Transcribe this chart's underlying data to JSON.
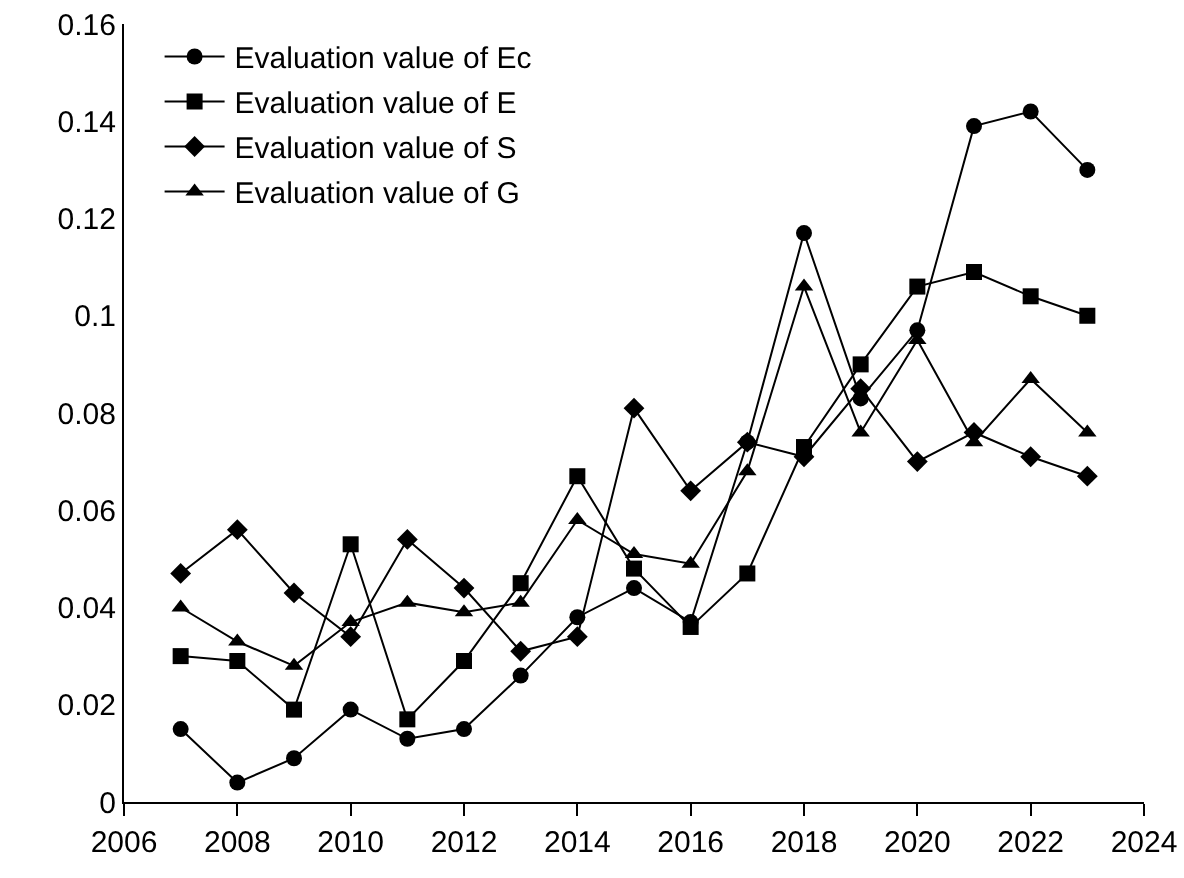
{
  "chart_data": {
    "type": "line",
    "x": [
      2007,
      2008,
      2009,
      2010,
      2011,
      2012,
      2013,
      2014,
      2015,
      2016,
      2017,
      2018,
      2019,
      2020,
      2021,
      2022,
      2023
    ],
    "series": [
      {
        "name": "Evaluation value of Ec",
        "color": "#000000",
        "marker": "circle",
        "values": [
          0.015,
          0.004,
          0.009,
          0.019,
          0.013,
          0.015,
          0.026,
          0.038,
          0.044,
          0.037,
          0.074,
          0.117,
          0.083,
          0.097,
          0.139,
          0.142,
          0.13
        ]
      },
      {
        "name": "Evaluation value of E",
        "color": "#000000",
        "marker": "square",
        "values": [
          0.03,
          0.029,
          0.019,
          0.053,
          0.017,
          0.029,
          0.045,
          0.067,
          0.048,
          0.036,
          0.047,
          0.073,
          0.09,
          0.106,
          0.109,
          0.104,
          0.1
        ]
      },
      {
        "name": "Evaluation value of S",
        "color": "#000000",
        "marker": "diamond",
        "values": [
          0.047,
          0.056,
          0.043,
          0.034,
          0.054,
          0.044,
          0.031,
          0.034,
          0.081,
          0.064,
          0.074,
          0.071,
          0.085,
          0.07,
          0.076,
          0.071,
          0.067
        ]
      },
      {
        "name": "Evaluation value of G",
        "color": "#000000",
        "marker": "triangle",
        "values": [
          0.04,
          0.033,
          0.028,
          0.037,
          0.041,
          0.039,
          0.041,
          0.058,
          0.051,
          0.049,
          0.068,
          0.106,
          0.076,
          0.095,
          0.074,
          0.087,
          0.076
        ]
      }
    ],
    "xlim": [
      2006,
      2024
    ],
    "xticks": [
      2006,
      2008,
      2010,
      2012,
      2014,
      2016,
      2018,
      2020,
      2022,
      2024
    ],
    "ylim": [
      0,
      0.16
    ],
    "yticks": [
      0,
      0.02,
      0.04,
      0.06,
      0.08,
      0.1,
      0.12,
      0.14,
      0.16
    ],
    "grid": false,
    "legend": "top left",
    "line_style": "solid"
  }
}
